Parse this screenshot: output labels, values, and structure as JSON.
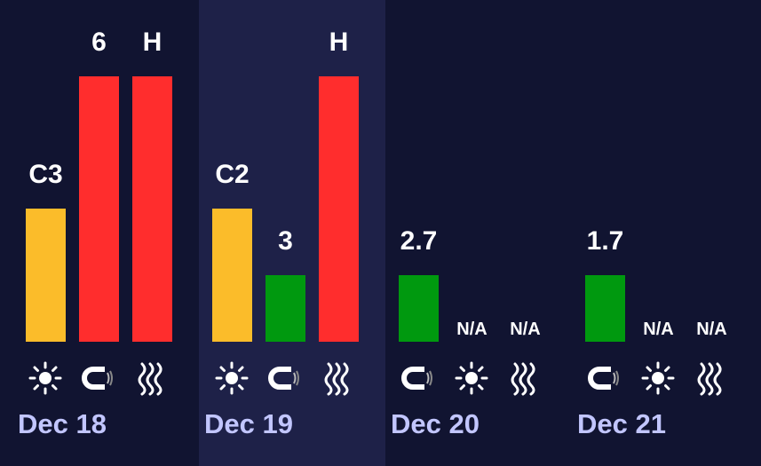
{
  "colors": {
    "background": "#111431",
    "highlight": "#1e2148",
    "yellow": "#fbbc2a",
    "red": "#ff2d2d",
    "green": "#00990f",
    "value_text": "#ffffff",
    "date_text": "#c2c6ff"
  },
  "days": [
    {
      "date": "Dec 18",
      "highlighted": false,
      "items": [
        {
          "icon": "sun-icon",
          "value": "C3",
          "level": 0.5,
          "color": "yellow"
        },
        {
          "icon": "magnet-icon",
          "value": "6",
          "level": 1.0,
          "color": "red"
        },
        {
          "icon": "radiation-waves-icon",
          "value": "H",
          "level": 1.0,
          "color": "red"
        }
      ]
    },
    {
      "date": "Dec 19",
      "highlighted": true,
      "items": [
        {
          "icon": "sun-icon",
          "value": "C2",
          "level": 0.5,
          "color": "yellow"
        },
        {
          "icon": "magnet-icon",
          "value": "3",
          "level": 0.25,
          "color": "green"
        },
        {
          "icon": "radiation-waves-icon",
          "value": "H",
          "level": 1.0,
          "color": "red"
        }
      ]
    },
    {
      "date": "Dec 20",
      "highlighted": false,
      "items": [
        {
          "icon": "magnet-icon",
          "value": "2.7",
          "level": 0.25,
          "color": "green"
        },
        {
          "icon": "sun-icon",
          "value": "N/A",
          "level": 0,
          "color": null
        },
        {
          "icon": "radiation-waves-icon",
          "value": "N/A",
          "level": 0,
          "color": null
        }
      ]
    },
    {
      "date": "Dec 21",
      "highlighted": false,
      "items": [
        {
          "icon": "magnet-icon",
          "value": "1.7",
          "level": 0.25,
          "color": "green"
        },
        {
          "icon": "sun-icon",
          "value": "N/A",
          "level": 0,
          "color": null
        },
        {
          "icon": "radiation-waves-icon",
          "value": "N/A",
          "level": 0,
          "color": null
        }
      ]
    }
  ]
}
